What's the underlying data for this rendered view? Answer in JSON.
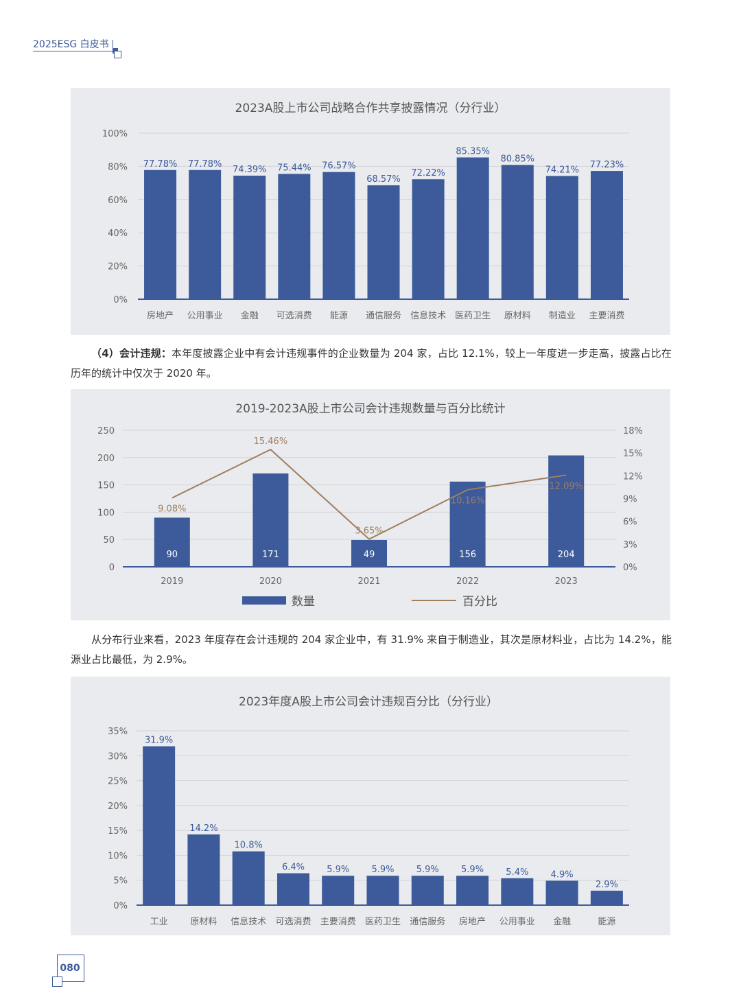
{
  "header": {
    "title": "2025ESG 白皮书"
  },
  "page_number": "080",
  "paragraph1": {
    "label": "（4）会计违规：",
    "text": "本年度披露企业中有会计违规事件的企业数量为 204 家，占比 12.1%，较上一年度进一步走高，披露占比在历年的统计中仅次于 2020 年。"
  },
  "paragraph2": {
    "text": "从分布行业来看，2023 年度存在会计违规的 204 家企业中，有 31.9% 来自于制造业，其次是原材料业，占比为 14.2%，能源业占比最低，为 2.9%。"
  },
  "colors": {
    "bar": "#3d5a9a",
    "line": "#a07e5e",
    "panel": "#e9ebee"
  },
  "chart_data": [
    {
      "type": "bar",
      "title": "2023A股上市公司战略合作共享披露情况（分行业）",
      "categories": [
        "房地产",
        "公用事业",
        "金融",
        "可选消费",
        "能源",
        "通信服务",
        "信息技术",
        "医药卫生",
        "原材料",
        "制造业",
        "主要消费"
      ],
      "values": [
        77.78,
        77.78,
        74.39,
        75.44,
        76.57,
        68.57,
        72.22,
        85.35,
        80.85,
        74.21,
        77.23
      ],
      "labels": [
        "77.78%",
        "77.78%",
        "74.39%",
        "75.44%",
        "76.57%",
        "68.57%",
        "72.22%",
        "85.35%",
        "80.85%",
        "74.21%",
        "77.23%"
      ],
      "yticks": [
        "0%",
        "20%",
        "40%",
        "60%",
        "80%",
        "100%"
      ],
      "ylim": [
        0,
        100
      ]
    },
    {
      "type": "bar+line",
      "title": "2019-2023A股上市公司会计违规数量与百分比统计",
      "categories": [
        "2019",
        "2020",
        "2021",
        "2022",
        "2023"
      ],
      "series": [
        {
          "name": "数量",
          "type": "bar",
          "values": [
            90,
            171,
            49,
            156,
            204
          ],
          "labels": [
            "90",
            "171",
            "49",
            "156",
            "204"
          ]
        },
        {
          "name": "百分比",
          "type": "line",
          "values": [
            9.08,
            15.46,
            3.65,
            10.16,
            12.09
          ],
          "labels": [
            "9.08%",
            "15.46%",
            "3.65%",
            "10.16%",
            "12.09%"
          ]
        }
      ],
      "yticks_left": [
        "0",
        "50",
        "100",
        "150",
        "200",
        "250"
      ],
      "yticks_right": [
        "0%",
        "3%",
        "6%",
        "9%",
        "12%",
        "15%",
        "18%"
      ],
      "ylim_left": [
        0,
        250
      ],
      "ylim_right": [
        0,
        18
      ],
      "legend": "bottom"
    },
    {
      "type": "bar",
      "title": "2023年度A股上市公司会计违规百分比（分行业）",
      "categories": [
        "工业",
        "原材料",
        "信息技术",
        "可选消费",
        "主要消费",
        "医药卫生",
        "通信服务",
        "房地产",
        "公用事业",
        "金融",
        "能源"
      ],
      "values": [
        31.9,
        14.2,
        10.8,
        6.4,
        5.9,
        5.9,
        5.9,
        5.9,
        5.4,
        4.9,
        2.9
      ],
      "labels": [
        "31.9%",
        "14.2%",
        "10.8%",
        "6.4%",
        "5.9%",
        "5.9%",
        "5.9%",
        "5.9%",
        "5.4%",
        "4.9%",
        "2.9%"
      ],
      "yticks": [
        "0%",
        "5%",
        "10%",
        "15%",
        "20%",
        "25%",
        "30%",
        "35%"
      ],
      "ylim": [
        0,
        35
      ]
    }
  ]
}
